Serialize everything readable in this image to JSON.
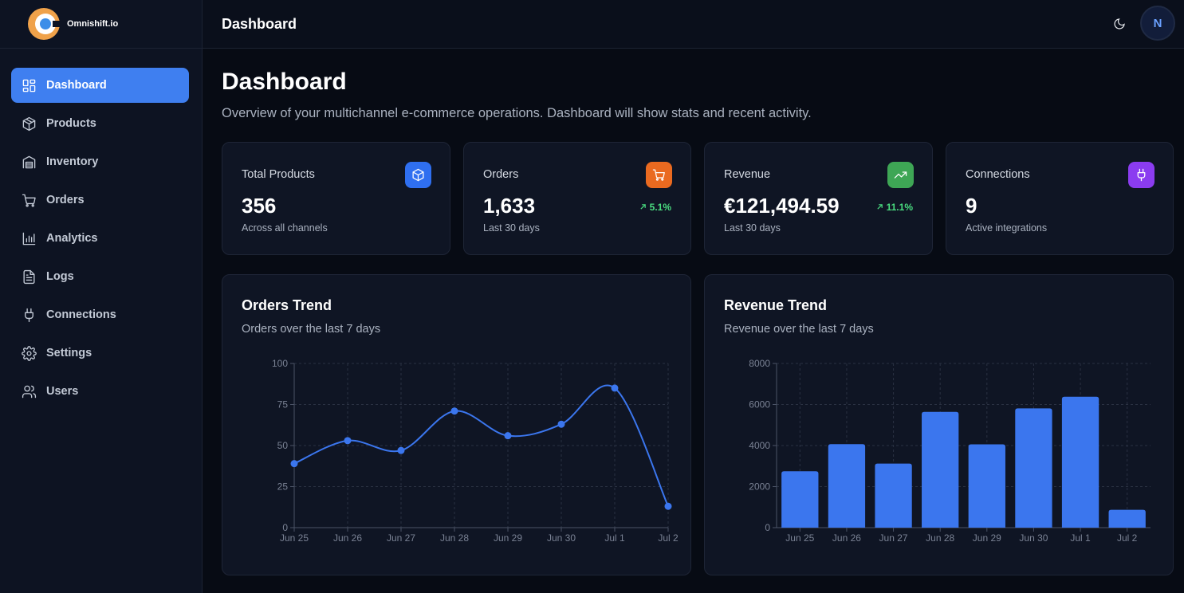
{
  "brand": {
    "name": "Omnishift.io"
  },
  "sidebar": {
    "items": [
      {
        "label": "Dashboard",
        "icon": "dashboard-grid-icon",
        "active": true
      },
      {
        "label": "Products",
        "icon": "package-box-icon"
      },
      {
        "label": "Inventory",
        "icon": "warehouse-icon"
      },
      {
        "label": "Orders",
        "icon": "shopping-cart-icon"
      },
      {
        "label": "Analytics",
        "icon": "bar-chart-icon"
      },
      {
        "label": "Logs",
        "icon": "file-text-icon"
      },
      {
        "label": "Connections",
        "icon": "plug-icon"
      },
      {
        "label": "Settings",
        "icon": "gear-icon"
      },
      {
        "label": "Users",
        "icon": "users-icon"
      }
    ]
  },
  "header": {
    "title": "Dashboard",
    "avatar_initial": "N",
    "theme_icon": "moon-icon"
  },
  "main": {
    "title": "Dashboard",
    "subtitle": "Overview of your multichannel e-commerce operations. Dashboard will show stats and recent activity."
  },
  "stats": {
    "total_products": {
      "label": "Total Products",
      "value": "356",
      "note": "Across all channels",
      "icon": "package-box-icon",
      "color": "#2f6ff0"
    },
    "orders": {
      "label": "Orders",
      "value": "1,633",
      "note": "Last 30 days",
      "trend": "5.1%",
      "icon": "shopping-cart-icon",
      "color": "#ea6a20"
    },
    "revenue": {
      "label": "Revenue",
      "value": "€121,494.59",
      "note": "Last 30 days",
      "trend": "11.1%",
      "icon": "trending-up-icon",
      "color": "#3ea655"
    },
    "connections": {
      "label": "Connections",
      "value": "9",
      "note": "Active integrations",
      "icon": "plug-icon",
      "color": "#8b3cf0"
    }
  },
  "colors": {
    "accent": "#3f7ff0",
    "chart": "#3b76ee",
    "trend_up": "#4ade80"
  },
  "chart_data": [
    {
      "type": "line",
      "title": "Orders Trend",
      "subtitle": "Orders over the last 7 days",
      "categories": [
        "Jun 25",
        "Jun 26",
        "Jun 27",
        "Jun 28",
        "Jun 29",
        "Jun 30",
        "Jul 1",
        "Jul 2"
      ],
      "values": [
        39,
        53,
        47,
        71,
        56,
        63,
        85,
        13
      ],
      "ylim": [
        0,
        100
      ],
      "yticks": [
        0,
        25,
        50,
        75,
        100
      ],
      "grid": true
    },
    {
      "type": "bar",
      "title": "Revenue Trend",
      "subtitle": "Revenue over the last 7 days",
      "categories": [
        "Jun 25",
        "Jun 26",
        "Jun 27",
        "Jun 28",
        "Jun 29",
        "Jun 30",
        "Jul 1",
        "Jul 2"
      ],
      "values": [
        2750,
        4070,
        3120,
        5640,
        4060,
        5810,
        6380,
        870
      ],
      "ylim": [
        0,
        8000
      ],
      "yticks": [
        0,
        2000,
        4000,
        6000,
        8000
      ],
      "grid": true
    }
  ]
}
